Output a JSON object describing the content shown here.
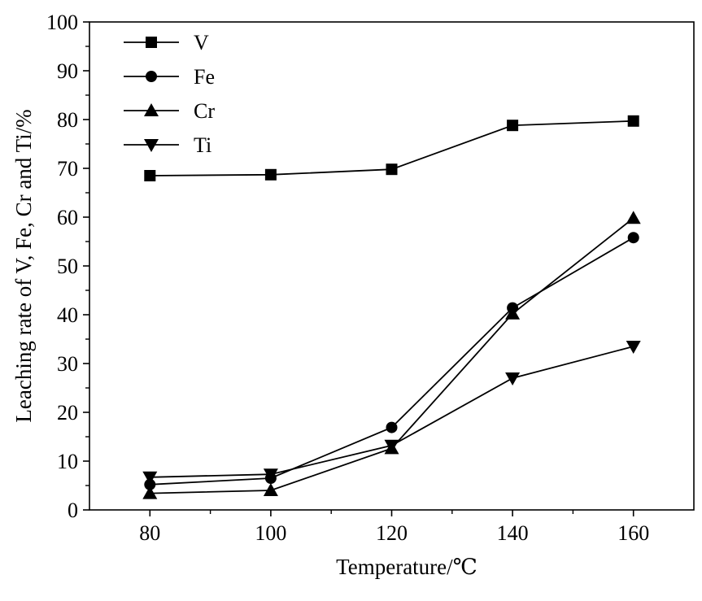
{
  "chart_data": {
    "type": "line",
    "title": "",
    "xlabel": "Temperature/℃",
    "ylabel": "Leaching rate of V, Fe, Cr and Ti/%",
    "x": [
      80,
      100,
      120,
      140,
      160
    ],
    "xlim": [
      70,
      170
    ],
    "ylim": [
      0,
      100
    ],
    "xticks": [
      80,
      100,
      120,
      140,
      160
    ],
    "yticks": [
      0,
      10,
      20,
      30,
      40,
      50,
      60,
      70,
      80,
      90,
      100
    ],
    "grid": false,
    "legend_position": "top-left",
    "series": [
      {
        "name": "V",
        "marker": "square",
        "values": [
          68.5,
          68.7,
          69.8,
          78.8,
          79.7
        ]
      },
      {
        "name": "Fe",
        "marker": "circle",
        "values": [
          5.2,
          6.5,
          16.9,
          41.4,
          55.8
        ]
      },
      {
        "name": "Cr",
        "marker": "triangle-up",
        "values": [
          3.4,
          4.0,
          12.6,
          40.2,
          59.8
        ]
      },
      {
        "name": "Ti",
        "marker": "triangle-down",
        "values": [
          6.7,
          7.3,
          13.2,
          27.0,
          33.5
        ]
      }
    ],
    "colors": {
      "line": "#000000",
      "marker": "#000000",
      "axis": "#000000"
    }
  }
}
